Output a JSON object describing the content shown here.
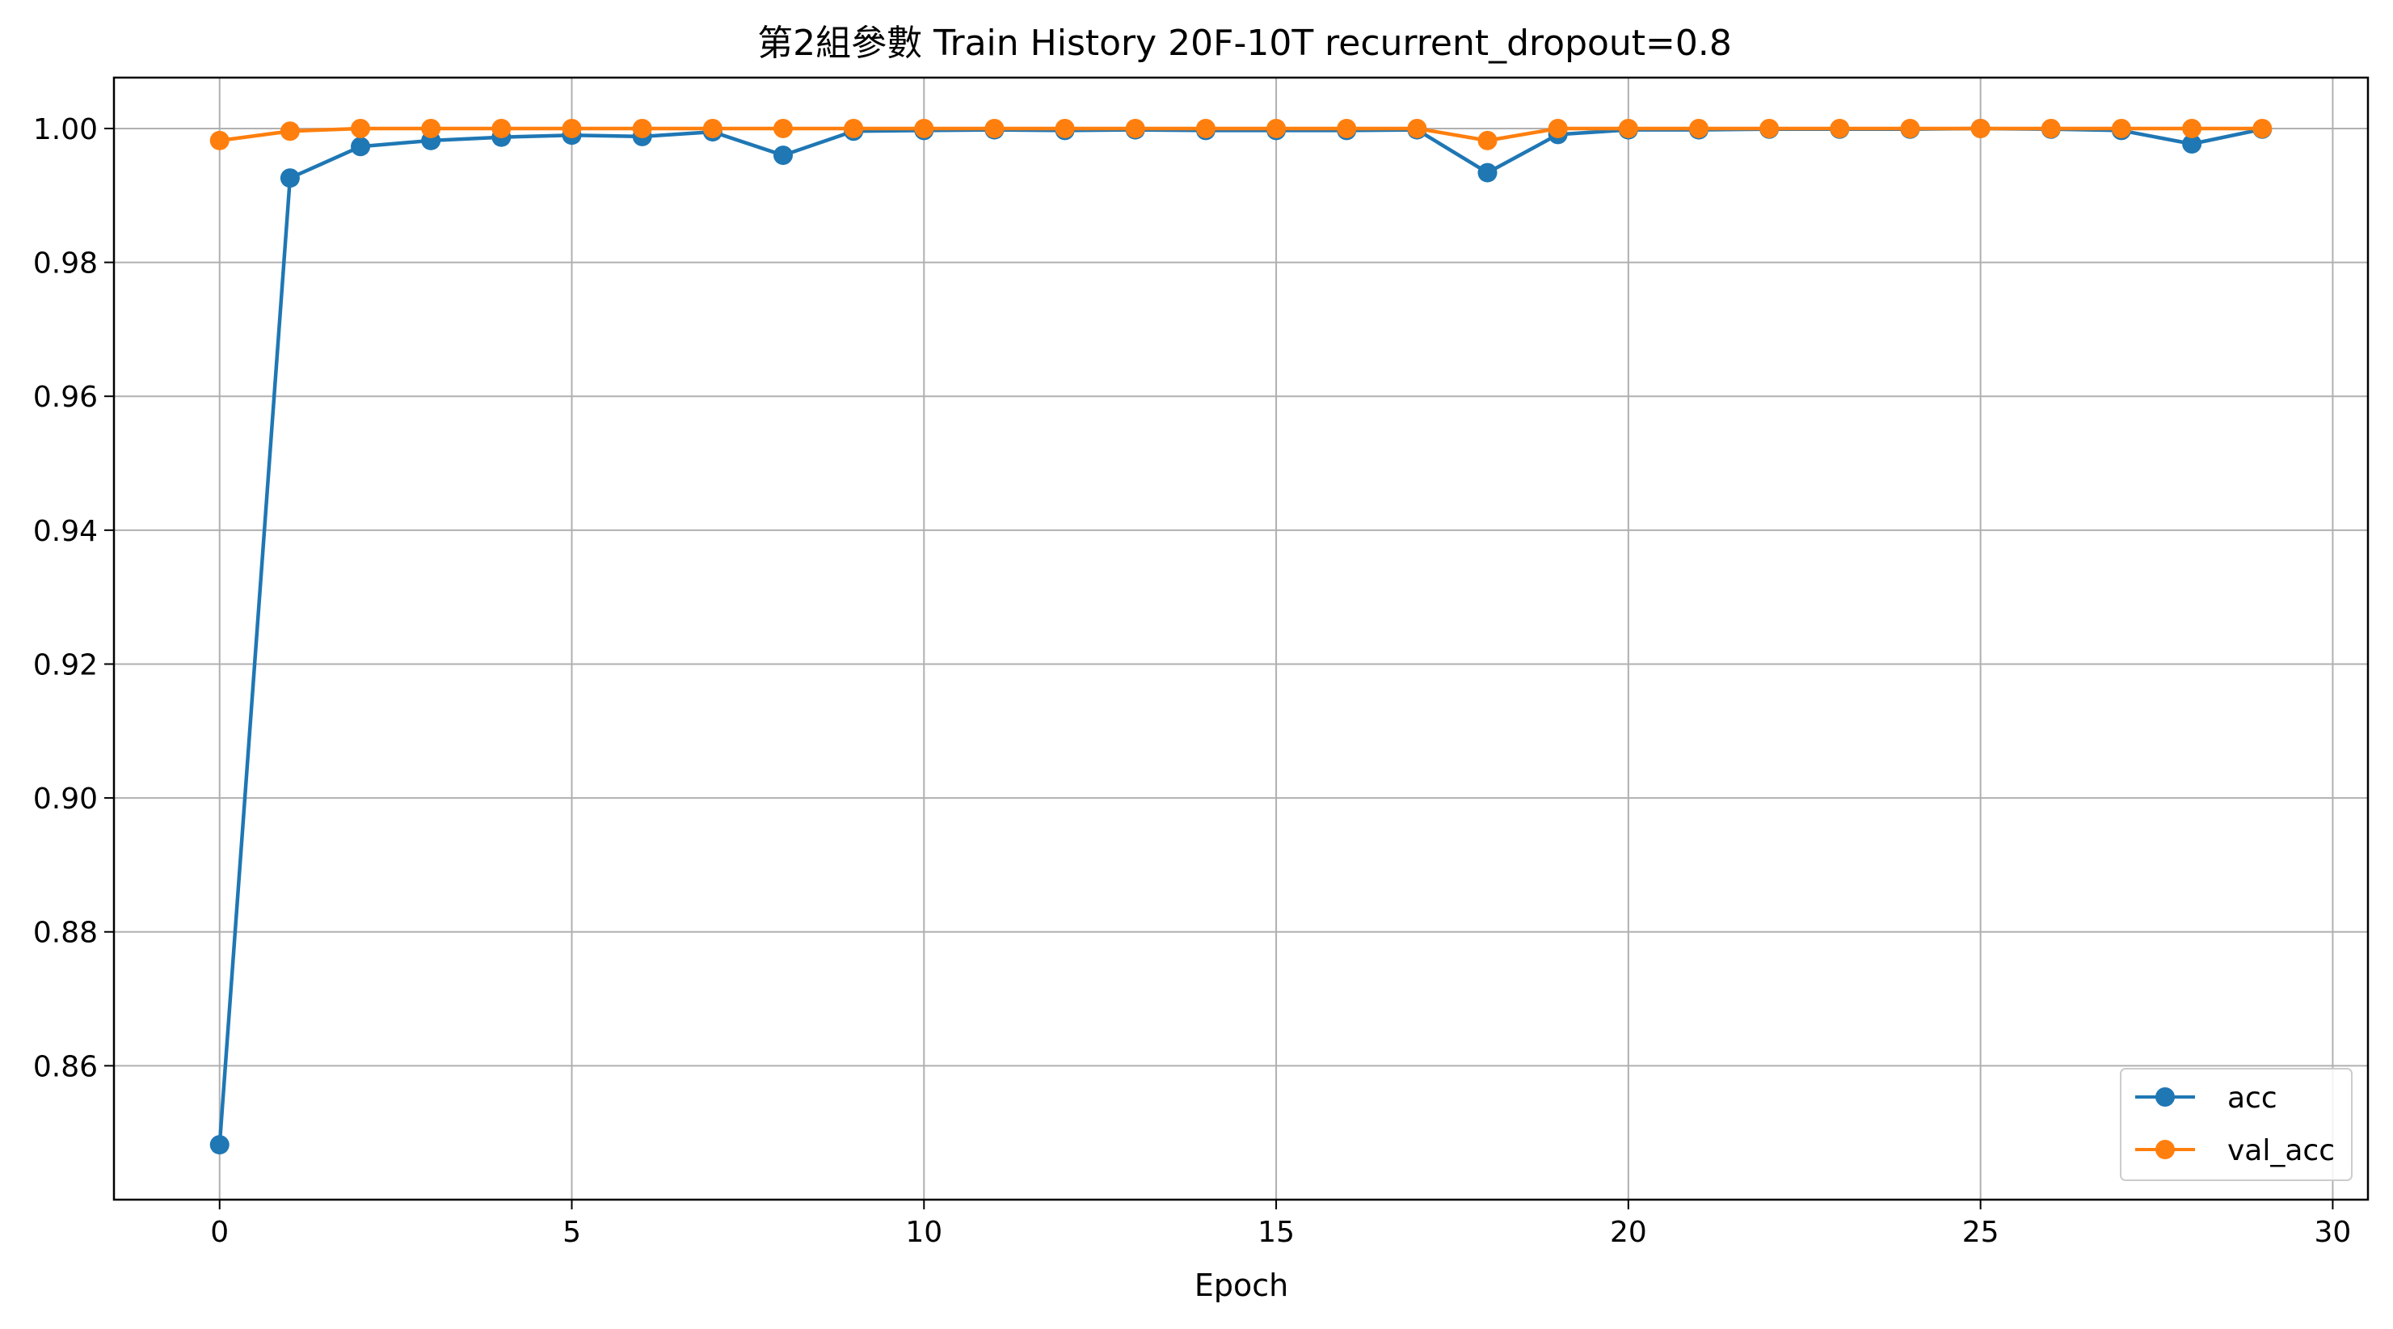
{
  "chart_data": {
    "type": "line",
    "title": "第2組參數 Train History 20F-10T recurrent_dropout=0.8",
    "xlabel": "Epoch",
    "ylabel": "",
    "xlim": [
      -1.5,
      30.5
    ],
    "ylim": [
      0.84,
      1.0076
    ],
    "xticks": [
      0,
      5,
      10,
      15,
      20,
      25,
      30
    ],
    "yticks": [
      0.86,
      0.88,
      0.9,
      0.92,
      0.94,
      0.96,
      0.98,
      1.0
    ],
    "grid": true,
    "legend_position": "lower-right",
    "x": [
      0,
      1,
      2,
      3,
      4,
      5,
      6,
      7,
      8,
      9,
      10,
      11,
      12,
      13,
      14,
      15,
      16,
      17,
      18,
      19,
      20,
      21,
      22,
      23,
      24,
      25,
      26,
      27,
      28,
      29
    ],
    "series": [
      {
        "name": "acc",
        "color": "#1f77b4",
        "marker": "circle",
        "values": [
          0.8482,
          0.9926,
          0.9973,
          0.9982,
          0.9987,
          0.999,
          0.9988,
          0.9995,
          0.996,
          0.9996,
          0.9997,
          0.9998,
          0.9997,
          0.9998,
          0.9997,
          0.9997,
          0.9997,
          0.9998,
          0.9934,
          0.9991,
          0.9998,
          0.9998,
          0.9999,
          0.9999,
          0.9999,
          1.0,
          0.9999,
          0.9997,
          0.9977,
          0.9999
        ]
      },
      {
        "name": "val_acc",
        "color": "#ff7f0e",
        "marker": "circle",
        "values": [
          0.9982,
          0.9996,
          1.0,
          1.0,
          1.0,
          1.0,
          1.0,
          1.0,
          1.0,
          1.0,
          1.0,
          1.0,
          1.0,
          1.0,
          1.0,
          1.0,
          1.0,
          1.0,
          0.9982,
          1.0,
          1.0,
          1.0,
          1.0,
          1.0,
          1.0,
          1.0,
          1.0,
          1.0,
          1.0,
          1.0
        ]
      }
    ]
  }
}
